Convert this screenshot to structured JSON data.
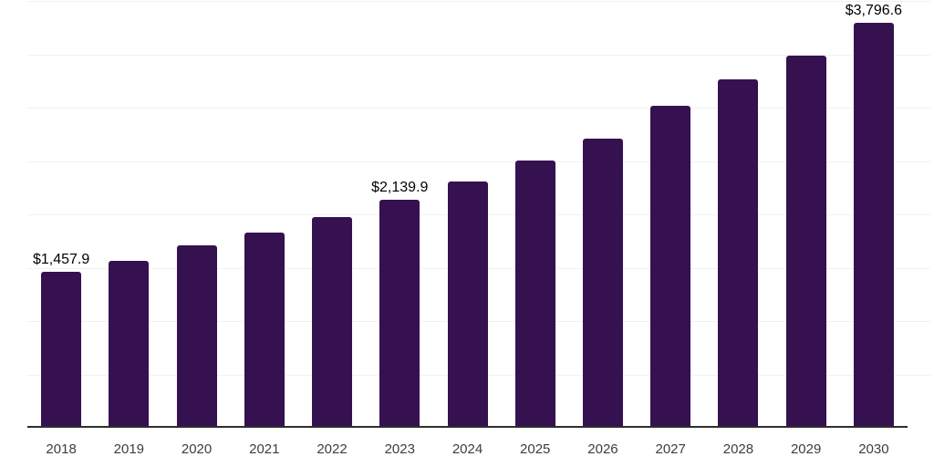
{
  "chart_data": {
    "type": "bar",
    "title": "",
    "xlabel": "",
    "ylabel": "",
    "categories": [
      "2018",
      "2019",
      "2020",
      "2021",
      "2022",
      "2023",
      "2024",
      "2025",
      "2026",
      "2027",
      "2028",
      "2029",
      "2030"
    ],
    "values": [
      1457.9,
      1565,
      1710,
      1830,
      1975,
      2139.9,
      2310,
      2505,
      2710,
      3015,
      3265,
      3490,
      3796.6
    ],
    "value_labels": {
      "2018": "$1,457.9",
      "2023": "$2,139.9",
      "2030": "$3,796.6"
    },
    "ylim": [
      0,
      4000
    ],
    "grid_step": 500,
    "grid": "horizontal",
    "legend": "none",
    "y_axis_tick_labels_visible": false,
    "colors": {
      "bar": "#351150",
      "axis_line": "#2e2e2e",
      "gridline": "#f1f1f1",
      "tick_label": "#3d3d3d",
      "value_label": "#000000",
      "background": "#ffffff"
    }
  }
}
